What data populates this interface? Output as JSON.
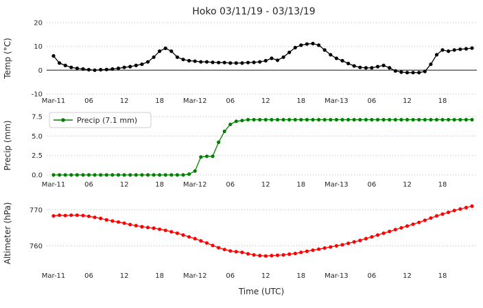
{
  "title": "Hoko 03/11/19 - 03/13/19",
  "xlabel": "Time (UTC)",
  "colors": {
    "temp": "#000000",
    "precip": "#008000",
    "altimeter": "#ff0000",
    "grid": "#b8b8b8",
    "zero_line": "#1a1a1a",
    "text": "#262626",
    "background": "#ffffff",
    "legend_border": "#cccccc"
  },
  "x_axis": {
    "n_points": 72,
    "tick_hours": [
      0,
      6,
      12,
      18,
      24,
      30,
      36,
      42,
      48,
      54,
      60,
      66
    ],
    "tick_labels": [
      "Mar-11",
      "06",
      "12",
      "18",
      "Mar-12",
      "06",
      "12",
      "18",
      "Mar-13",
      "06",
      "12",
      "18"
    ]
  },
  "chart_data": [
    {
      "id": "temp",
      "type": "line",
      "ylabel": "Temp (°C)",
      "ylim": [
        -10,
        20
      ],
      "yticks": [
        -10,
        0,
        10,
        20
      ],
      "ytick_labels": [
        "-10",
        "0",
        "10",
        "20"
      ],
      "grid": true,
      "zero_line": true,
      "series": [
        {
          "name": "Temp",
          "color": "#000000",
          "marker": "circle",
          "values": [
            6,
            3,
            2,
            1.2,
            0.8,
            0.5,
            0.2,
            0,
            0.2,
            0.3,
            0.5,
            0.8,
            1.2,
            1.5,
            2,
            2.5,
            3.5,
            5.5,
            8,
            9.2,
            8,
            5.5,
            4.5,
            4,
            3.8,
            3.5,
            3.5,
            3.3,
            3.2,
            3.2,
            3,
            3,
            3,
            3.2,
            3.3,
            3.5,
            4,
            5,
            4.2,
            5.5,
            7.5,
            9.5,
            10.5,
            11,
            11.2,
            10.5,
            8.5,
            6.5,
            5,
            4,
            2.8,
            1.8,
            1.2,
            1,
            1,
            1.5,
            2,
            1,
            -0.3,
            -0.8,
            -1,
            -1,
            -1,
            -0.5,
            2.5,
            6.5,
            8.5,
            8,
            8.5,
            8.8,
            9,
            9.3
          ]
        }
      ]
    },
    {
      "id": "precip",
      "type": "line",
      "ylabel": "Precip (mm)",
      "ylim": [
        0,
        7.5
      ],
      "yticks": [
        0,
        2.5,
        5,
        7.5
      ],
      "ytick_labels": [
        "0.0",
        "2.5",
        "5.0",
        "7.5"
      ],
      "grid": true,
      "zero_line": false,
      "legend": {
        "label": "Precip (7.1 mm)",
        "total_mm": 7.1,
        "position": "upper left"
      },
      "series": [
        {
          "name": "Precip",
          "color": "#008000",
          "marker": "circle",
          "values": [
            0,
            0,
            0,
            0,
            0,
            0,
            0,
            0,
            0,
            0,
            0,
            0,
            0,
            0,
            0,
            0,
            0,
            0,
            0,
            0,
            0,
            0,
            0,
            0.1,
            0.5,
            2.3,
            2.4,
            2.4,
            4.2,
            5.6,
            6.5,
            6.9,
            7,
            7.1,
            7.1,
            7.1,
            7.1,
            7.1,
            7.1,
            7.1,
            7.1,
            7.1,
            7.1,
            7.1,
            7.1,
            7.1,
            7.1,
            7.1,
            7.1,
            7.1,
            7.1,
            7.1,
            7.1,
            7.1,
            7.1,
            7.1,
            7.1,
            7.1,
            7.1,
            7.1,
            7.1,
            7.1,
            7.1,
            7.1,
            7.1,
            7.1,
            7.1,
            7.1,
            7.1,
            7.1,
            7.1,
            7.1
          ]
        }
      ]
    },
    {
      "id": "altimeter",
      "type": "line",
      "ylabel": "Altimeter (hPa)",
      "ylim": [
        754,
        773
      ],
      "yticks": [
        760,
        770
      ],
      "ytick_labels": [
        "760",
        "770"
      ],
      "grid": true,
      "zero_line": false,
      "series": [
        {
          "name": "Altimeter",
          "color": "#ff0000",
          "marker": "circle",
          "values": [
            768.3,
            768.5,
            768.4,
            768.5,
            768.5,
            768.4,
            768.2,
            767.9,
            767.6,
            767.2,
            766.9,
            766.6,
            766.3,
            765.9,
            765.6,
            765.3,
            765.1,
            764.9,
            764.6,
            764.3,
            763.9,
            763.5,
            763.0,
            762.5,
            762.0,
            761.4,
            760.8,
            760.1,
            759.5,
            759.0,
            758.6,
            758.4,
            758.2,
            757.8,
            757.5,
            757.3,
            757.2,
            757.3,
            757.4,
            757.5,
            757.7,
            757.9,
            758.2,
            758.5,
            758.8,
            759.1,
            759.4,
            759.7,
            760.0,
            760.3,
            760.7,
            761.1,
            761.5,
            762.0,
            762.5,
            763.0,
            763.5,
            764.0,
            764.5,
            765.0,
            765.5,
            766.0,
            766.5,
            767.1,
            767.7,
            768.3,
            768.8,
            769.3,
            769.8,
            770.2,
            770.6,
            771.0
          ]
        }
      ]
    }
  ]
}
